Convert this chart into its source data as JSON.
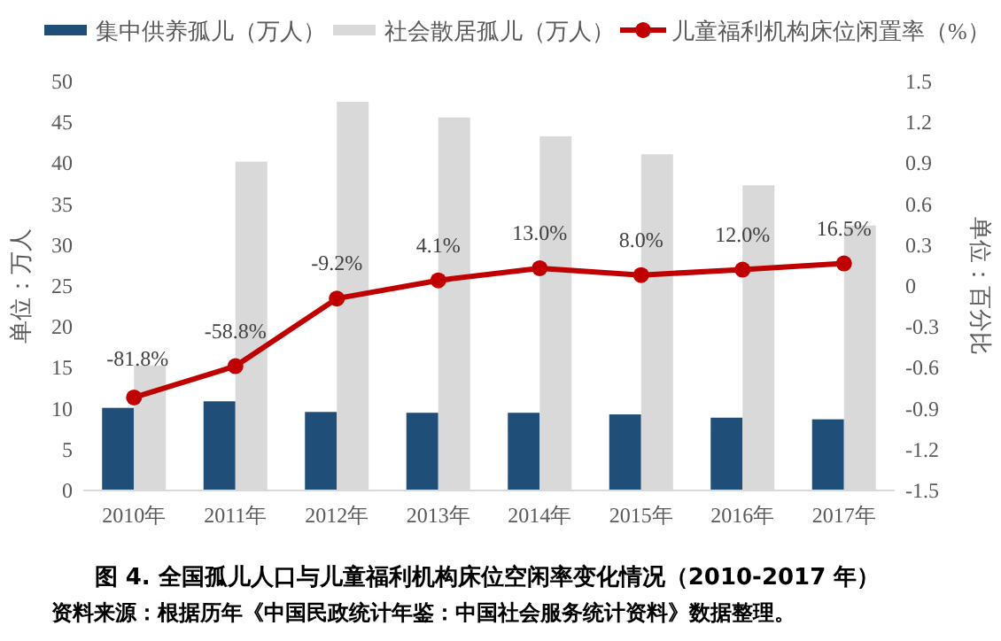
{
  "chart_data": {
    "type": "bar",
    "title": "图 4. 全国孤儿人口与儿童福利机构床位空闲率变化情况（2010-2017 年）",
    "annotations": [
      "资料来源：根据历年《中国民政统计年鉴：中国社会服务统计资料》数据整理。"
    ],
    "categories": [
      "2010年",
      "2011年",
      "2012年",
      "2013年",
      "2014年",
      "2015年",
      "2016年",
      "2017年"
    ],
    "series": [
      {
        "name": "集中供养孤儿（万人）",
        "color": "#1f4e79",
        "values": [
          10.1,
          10.9,
          9.6,
          9.5,
          9.5,
          9.3,
          8.9,
          8.7
        ]
      },
      {
        "name": "社会散居孤儿（万人）",
        "color": "#d9d9d9",
        "values": [
          15.3,
          40.2,
          47.5,
          45.6,
          43.3,
          41.1,
          37.3,
          32.4
        ]
      },
      {
        "name": "儿童福利机构床位闲置率（%）",
        "type": "line",
        "axis": "y2",
        "color": "#c00000",
        "values": [
          -0.818,
          -0.588,
          -0.092,
          0.041,
          0.13,
          0.08,
          0.12,
          0.165
        ],
        "value_labels": [
          "-81.8%",
          "-58.8%",
          "-9.2%",
          "4.1%",
          "13.0%",
          "8.0%",
          "12.0%",
          "16.5%"
        ]
      }
    ],
    "ylabel": "单位：万人",
    "y2label": "单位：百分比",
    "ylim": [
      0,
      50
    ],
    "yticks": [
      0,
      5,
      10,
      15,
      20,
      25,
      30,
      35,
      40,
      45,
      50
    ],
    "y2lim": [
      -1.5,
      1.5
    ],
    "y2ticks": [
      -1.5,
      -1.2,
      -0.9,
      -0.6,
      -0.3,
      0,
      0.3,
      0.6,
      0.9,
      1.2,
      1.5
    ],
    "legend": "top",
    "marker": "circle"
  }
}
